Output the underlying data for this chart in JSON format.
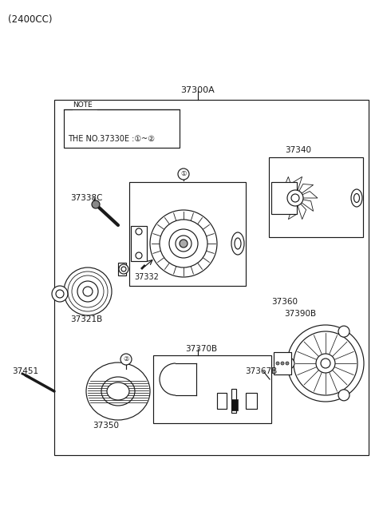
{
  "title_sub": "(2400CC)",
  "bg_color": "#ffffff",
  "part_label_37300A": "37300A",
  "part_label_37340": "37340",
  "part_label_37338C": "37338C",
  "part_label_37332": "37332",
  "part_label_37321B": "37321B",
  "part_label_37451": "37451",
  "part_label_37350": "37350",
  "part_label_37370B": "37370B",
  "part_label_37367B": "37367B",
  "part_label_37360": "37360",
  "part_label_37390B": "37390B",
  "note_text1": "NOTE",
  "note_text2": "THE NO.37330E :①~②",
  "circle1_label": "①",
  "circle2_label": "②",
  "text_color": "#1a1a1a",
  "line_color": "#1a1a1a",
  "lw": 0.85
}
